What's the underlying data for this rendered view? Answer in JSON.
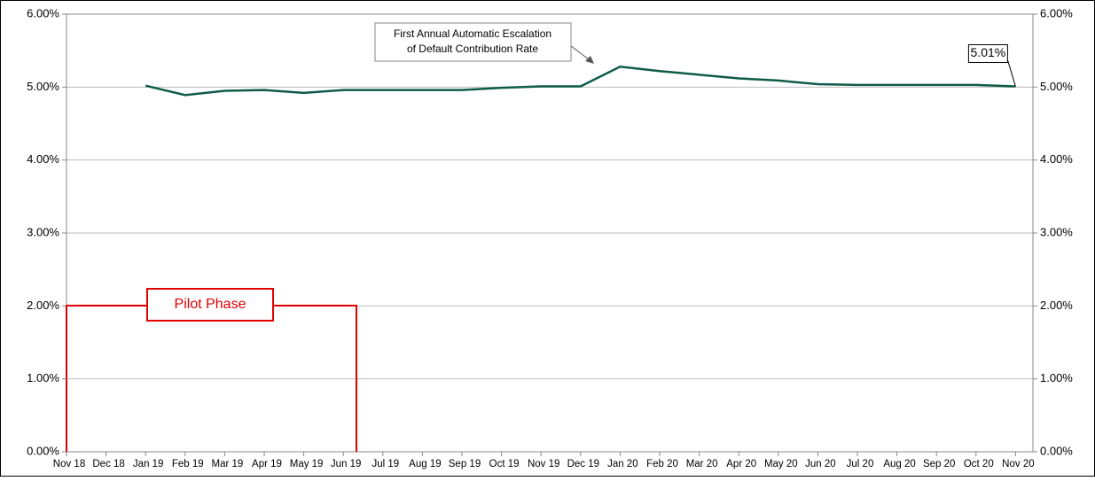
{
  "chart_data": {
    "type": "line",
    "categories": [
      "Nov 18",
      "Dec 18",
      "Jan 19",
      "Feb 19",
      "Mar 19",
      "Apr 19",
      "May 19",
      "Jun 19",
      "Jul 19",
      "Aug 19",
      "Sep 19",
      "Oct 19",
      "Nov 19",
      "Dec 19",
      "Jan 20",
      "Feb 20",
      "Mar 20",
      "Apr 20",
      "May 20",
      "Jun 20",
      "Jul 20",
      "Aug 20",
      "Sep 20",
      "Oct 20",
      "Nov 20"
    ],
    "series": [
      {
        "color": "#0e5c48",
        "values": [
          null,
          null,
          5.02,
          4.89,
          4.95,
          4.96,
          4.92,
          4.96,
          4.96,
          4.96,
          4.96,
          4.99,
          5.01,
          5.01,
          5.28,
          5.22,
          5.17,
          5.12,
          5.09,
          5.04,
          5.03,
          5.03,
          5.03,
          5.03,
          5.01
        ],
        "value_labels": [
          null,
          null,
          null,
          null,
          null,
          null,
          null,
          null,
          null,
          null,
          null,
          null,
          null,
          null,
          null,
          null,
          null,
          null,
          null,
          null,
          null,
          null,
          null,
          null,
          "5.01%"
        ]
      }
    ],
    "ylim": [
      0,
      6
    ],
    "yticks": [
      {
        "value": 0,
        "label": "0.00%"
      },
      {
        "value": 1,
        "label": "1.00%"
      },
      {
        "value": 2,
        "label": "2.00%"
      },
      {
        "value": 3,
        "label": "3.00%"
      },
      {
        "value": 4,
        "label": "4.00%"
      },
      {
        "value": 5,
        "label": "5.00%"
      },
      {
        "value": 6,
        "label": "6.00%"
      }
    ],
    "grid": true,
    "annotations": [
      "First Annual Automatic Escalation",
      "of Default Contribution Rate",
      "Pilot Phase"
    ]
  }
}
